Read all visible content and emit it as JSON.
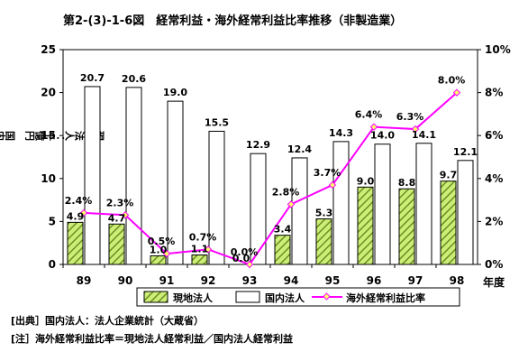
{
  "chart_data": {
    "type": "bar",
    "title": "第2-(3)-1-6図　経常利益・海外経常利益比率推移（非製造業）",
    "categories": [
      "89",
      "90",
      "91",
      "92",
      "93",
      "94",
      "95",
      "96",
      "97",
      "98"
    ],
    "xlabel": "年度",
    "ylabel_left": "現地法人：千億円　国内法人：兆円",
    "ylim_left": [
      0,
      25
    ],
    "yticks_left": [
      "0",
      "5",
      "10",
      "15",
      "20",
      "25"
    ],
    "ylim_right": [
      0,
      10
    ],
    "yticks_right": [
      "0%",
      "2%",
      "4%",
      "6%",
      "8%",
      "10%"
    ],
    "series": [
      {
        "name": "現地法人",
        "kind": "bar",
        "axis": "left",
        "color": "#9acd32",
        "values": [
          4.9,
          4.7,
          1.0,
          1.1,
          0.0,
          3.4,
          5.3,
          9.0,
          8.8,
          9.7
        ],
        "labels": [
          "4.9",
          "4.7",
          "1.0",
          "1.1",
          "0.0",
          "3.4",
          "5.3",
          "9.0",
          "8.8",
          "9.7"
        ]
      },
      {
        "name": "国内法人",
        "kind": "bar",
        "axis": "left",
        "color": "#ffffff",
        "values": [
          20.7,
          20.6,
          19.0,
          15.5,
          12.9,
          12.4,
          14.3,
          14.0,
          14.1,
          12.1
        ],
        "labels": [
          "20.7",
          "20.6",
          "19.0",
          "15.5",
          "12.9",
          "12.4",
          "14.3",
          "14.0",
          "14.1",
          "12.1"
        ]
      },
      {
        "name": "海外経常利益比率",
        "kind": "line",
        "axis": "right",
        "color": "#ff00ff",
        "values": [
          2.4,
          2.3,
          0.5,
          0.7,
          0.0,
          2.8,
          3.7,
          6.4,
          6.3,
          8.0
        ],
        "labels": [
          "2.4%",
          "2.3%",
          "0.5%",
          "0.7%",
          "0.0%",
          "2.8%",
          "3.7%",
          "6.4%",
          "6.3%",
          "8.0%"
        ]
      }
    ],
    "legend_position": "bottom",
    "grid": false
  },
  "notes": {
    "source": "[出典］国内法人：法人企業統計（大蔵省）",
    "note": "[注］海外経常利益比率＝現地法人経常利益／国内法人経常利益"
  }
}
